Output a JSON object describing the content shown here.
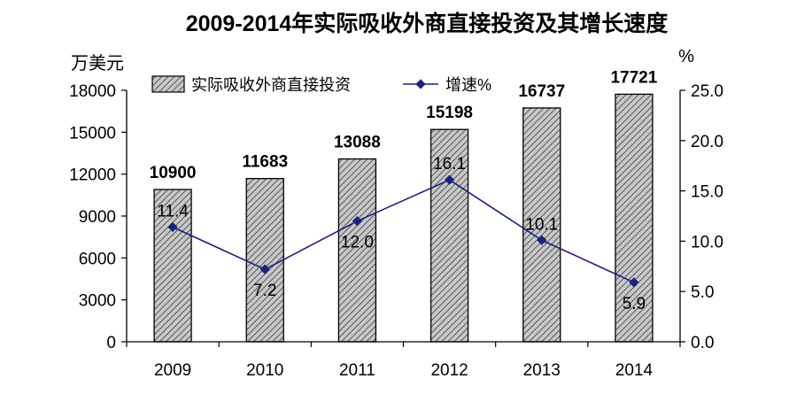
{
  "chart_data": {
    "type": "bar",
    "title": "2009-2014年实际吸收外商直接投资及其增长速度",
    "categories": [
      "2009",
      "2010",
      "2011",
      "2012",
      "2013",
      "2014"
    ],
    "series": [
      {
        "name": "实际吸收外商直接投资",
        "type": "bar",
        "axis": "left",
        "values": [
          10900,
          11683,
          13088,
          15198,
          16737,
          17721
        ]
      },
      {
        "name": "增速%",
        "type": "line",
        "axis": "right",
        "values": [
          11.4,
          7.2,
          12.0,
          16.1,
          10.1,
          5.9
        ]
      }
    ],
    "y_left": {
      "unit": "万美元",
      "ylim": [
        0,
        18000
      ],
      "ticks": [
        "0",
        "3000",
        "6000",
        "9000",
        "12000",
        "15000",
        "18000"
      ]
    },
    "y_right": {
      "unit": "%",
      "ylim": [
        0,
        25
      ],
      "ticks": [
        "0.0",
        "5.0",
        "10.0",
        "15.0",
        "20.0",
        "25.0"
      ]
    },
    "legend": "top",
    "grid": false,
    "colors": {
      "bar_fill": "#c0c0c0",
      "bar_hatch": "#404040",
      "line": "#1a237e"
    },
    "bar_value_labels": [
      "10900",
      "11683",
      "13088",
      "15198",
      "16737",
      "17721"
    ],
    "line_value_labels": [
      "11.4",
      "7.2",
      "12.0",
      "16.1",
      "10.1",
      "5.9"
    ]
  }
}
